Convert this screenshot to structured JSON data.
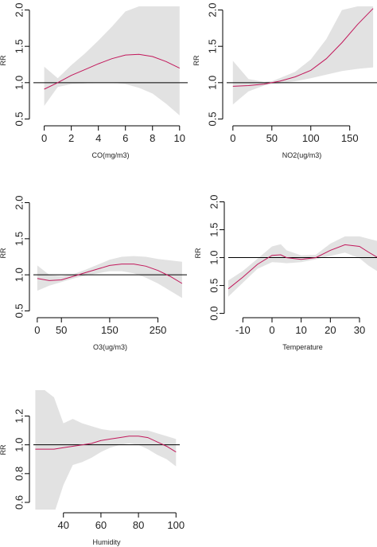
{
  "chart_data": [
    {
      "type": "line",
      "xlabel": "CO(mg/m3)",
      "ylabel": "RR",
      "xlim": [
        -0.8,
        10.6
      ],
      "ylim": [
        0.45,
        2.05
      ],
      "xticks": [
        0,
        2,
        4,
        6,
        8,
        10
      ],
      "yticks": [
        0.5,
        1.0,
        1.5,
        2.0
      ],
      "reference_line": 1.0,
      "series": [
        {
          "x": [
            0,
            1,
            2,
            3,
            4,
            5,
            6,
            7,
            8,
            9,
            10
          ],
          "values": [
            0.91,
            1.0,
            1.1,
            1.18,
            1.26,
            1.33,
            1.38,
            1.39,
            1.36,
            1.29,
            1.2
          ],
          "lower": [
            0.68,
            0.94,
            0.98,
            0.99,
            1.0,
            1.0,
            0.98,
            0.93,
            0.85,
            0.71,
            0.55
          ],
          "upper": [
            1.22,
            1.06,
            1.24,
            1.4,
            1.58,
            1.77,
            1.98,
            2.05,
            2.05,
            2.05,
            2.05
          ]
        }
      ]
    },
    {
      "type": "line",
      "xlabel": "NO2(ug/m3)",
      "ylabel": "RR",
      "xlim": [
        -8,
        185
      ],
      "ylim": [
        0.45,
        2.05
      ],
      "xticks": [
        0,
        50,
        100,
        150
      ],
      "yticks": [
        0.5,
        1.0,
        1.5,
        2.0
      ],
      "reference_line": 1.0,
      "series": [
        {
          "x": [
            0,
            20,
            40,
            50,
            60,
            80,
            100,
            120,
            140,
            160,
            180
          ],
          "values": [
            0.95,
            0.96,
            0.98,
            1.0,
            1.02,
            1.08,
            1.17,
            1.33,
            1.55,
            1.8,
            2.02
          ],
          "lower": [
            0.7,
            0.88,
            0.96,
            0.98,
            0.99,
            1.02,
            1.06,
            1.11,
            1.16,
            1.19,
            1.21
          ],
          "upper": [
            1.3,
            1.05,
            1.01,
            1.02,
            1.06,
            1.15,
            1.32,
            1.6,
            2.0,
            2.05,
            2.05
          ]
        }
      ]
    },
    {
      "type": "line",
      "xlabel": "O3(ug/m3)",
      "ylabel": "RR",
      "xlim": [
        -8,
        310
      ],
      "ylim": [
        0.45,
        2.05
      ],
      "xticks": [
        0,
        50,
        150,
        250
      ],
      "yticks": [
        0.5,
        1.0,
        1.5,
        2.0
      ],
      "reference_line": 1.0,
      "series": [
        {
          "x": [
            0,
            25,
            50,
            75,
            100,
            125,
            150,
            175,
            200,
            225,
            250,
            275,
            300
          ],
          "values": [
            0.95,
            0.92,
            0.93,
            0.98,
            1.03,
            1.08,
            1.13,
            1.15,
            1.15,
            1.12,
            1.06,
            0.98,
            0.88
          ],
          "lower": [
            0.78,
            0.85,
            0.9,
            0.95,
            0.99,
            1.02,
            1.05,
            1.05,
            1.02,
            0.96,
            0.88,
            0.78,
            0.68
          ],
          "upper": [
            1.13,
            1.0,
            0.98,
            1.01,
            1.07,
            1.14,
            1.21,
            1.25,
            1.26,
            1.25,
            1.22,
            1.2,
            1.18
          ]
        }
      ]
    },
    {
      "type": "line",
      "xlabel": "Temperature",
      "ylabel": "RR",
      "xlim": [
        -15,
        36
      ],
      "ylim": [
        -0.02,
        2.05
      ],
      "xticks": [
        -10,
        0,
        10,
        20,
        30
      ],
      "yticks": [
        0.0,
        0.5,
        1.0,
        1.5,
        2.0
      ],
      "reference_line": 1.0,
      "series": [
        {
          "x": [
            -15,
            -10,
            -5,
            0,
            3,
            5,
            10,
            15,
            20,
            25,
            30,
            33,
            36
          ],
          "values": [
            0.44,
            0.65,
            0.88,
            1.04,
            1.05,
            1.0,
            0.97,
            1.0,
            1.13,
            1.23,
            1.2,
            1.1,
            1.01
          ],
          "lower": [
            0.3,
            0.55,
            0.8,
            0.92,
            0.91,
            0.9,
            0.92,
            0.97,
            1.03,
            1.09,
            0.99,
            0.86,
            0.76
          ],
          "upper": [
            0.59,
            0.76,
            0.98,
            1.2,
            1.24,
            1.13,
            1.04,
            1.05,
            1.25,
            1.38,
            1.38,
            1.34,
            1.3
          ]
        }
      ]
    },
    {
      "type": "line",
      "xlabel": "Humidity",
      "ylabel": "RR",
      "xlim": [
        24,
        102
      ],
      "ylim": [
        0.55,
        1.38
      ],
      "xticks": [
        40,
        60,
        80,
        100
      ],
      "yticks": [
        0.6,
        0.8,
        1.0,
        1.2
      ],
      "reference_line": 1.0,
      "series": [
        {
          "x": [
            25,
            30,
            35,
            40,
            45,
            50,
            55,
            60,
            65,
            70,
            75,
            80,
            85,
            90,
            95,
            100
          ],
          "values": [
            0.97,
            0.97,
            0.97,
            0.98,
            0.99,
            1.0,
            1.01,
            1.03,
            1.04,
            1.05,
            1.06,
            1.06,
            1.05,
            1.02,
            0.99,
            0.95
          ],
          "lower": [
            0.5,
            0.5,
            0.52,
            0.72,
            0.86,
            0.88,
            0.91,
            0.95,
            0.98,
            1.0,
            1.01,
            1.0,
            0.97,
            0.93,
            0.9,
            0.85
          ],
          "upper": [
            1.38,
            1.38,
            1.33,
            1.15,
            1.18,
            1.15,
            1.13,
            1.11,
            1.1,
            1.1,
            1.1,
            1.1,
            1.1,
            1.08,
            1.06,
            1.04
          ]
        }
      ]
    }
  ]
}
